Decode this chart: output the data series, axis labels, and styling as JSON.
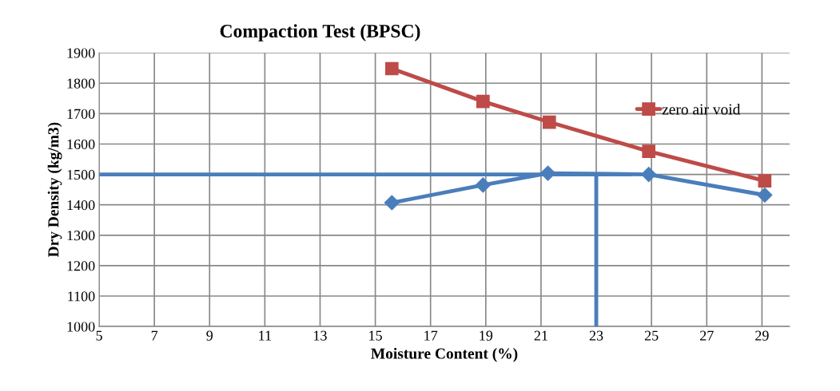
{
  "chart_data": {
    "type": "line",
    "title": "Compaction Test (BPSC)",
    "xlabel": "Moisture Content (%)",
    "ylabel": "Dry Density (kg/m3)",
    "xlim": [
      5,
      30
    ],
    "xticks": [
      5,
      7,
      9,
      11,
      13,
      15,
      17,
      19,
      21,
      23,
      25,
      27,
      29
    ],
    "ylim": [
      1000,
      1900
    ],
    "yticks": [
      1000,
      1100,
      1200,
      1300,
      1400,
      1500,
      1600,
      1700,
      1800,
      1900
    ],
    "grid": true,
    "legend": "top right",
    "series": [
      {
        "color": "#4a7ebb",
        "marker": "diamond",
        "x": [
          15.6,
          18.9,
          21.25,
          24.9,
          29.1
        ],
        "values": [
          1407,
          1465,
          1504,
          1500,
          1432
        ]
      },
      {
        "name": "zero air void",
        "color": "#be4b48",
        "marker": "square",
        "x": [
          15.6,
          18.9,
          21.3,
          24.9,
          29.1
        ],
        "values": [
          1848,
          1740,
          1672,
          1576,
          1479
        ]
      },
      {
        "color": "#4a7ebb",
        "marker": "none",
        "x": [
          5,
          24.25
        ],
        "values": [
          1500,
          1500
        ]
      },
      {
        "color": "#4a7ebb",
        "marker": "none",
        "x": [
          23,
          23
        ],
        "values": [
          1000,
          1500
        ]
      }
    ]
  }
}
